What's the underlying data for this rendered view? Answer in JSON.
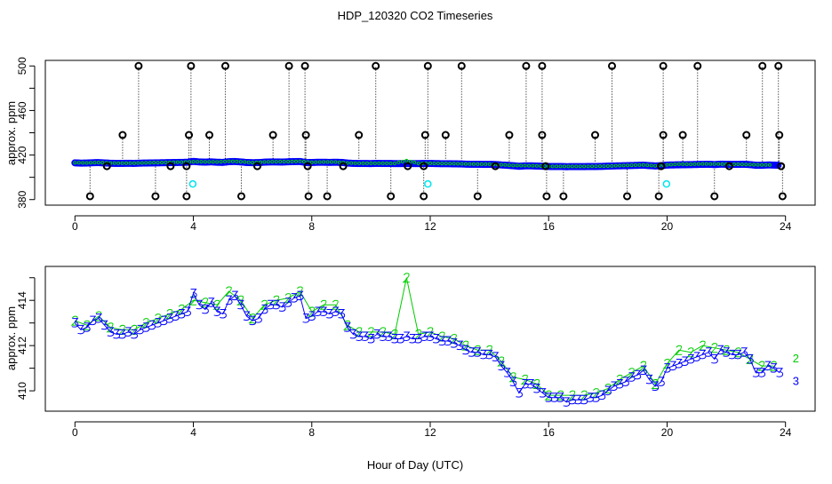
{
  "chart_data": [
    {
      "type": "scatter",
      "title": "HDP_120320  CO2 Timeseries",
      "xlabel": "",
      "ylabel": "approx. ppm",
      "xlim": [
        -1,
        25
      ],
      "ylim": [
        375,
        505
      ],
      "xticks": [
        0,
        4,
        8,
        12,
        16,
        20,
        24
      ],
      "yticks": [
        380,
        400,
        420,
        440,
        460,
        480,
        500
      ],
      "ytick_labels": [
        "380",
        "420",
        "460",
        "500"
      ],
      "main_series_source": "bottom panel series (blue and green)",
      "outliers": {
        "color": "#000000",
        "baseline": 412,
        "points": [
          [
            2.15,
            500
          ],
          [
            3.92,
            500
          ],
          [
            5.08,
            500
          ],
          [
            7.23,
            500
          ],
          [
            7.77,
            500
          ],
          [
            10.16,
            500
          ],
          [
            11.92,
            500
          ],
          [
            13.06,
            500
          ],
          [
            15.24,
            500
          ],
          [
            15.78,
            500
          ],
          [
            18.14,
            500
          ],
          [
            19.87,
            500
          ],
          [
            21.03,
            500
          ],
          [
            23.22,
            500
          ],
          [
            23.76,
            500
          ],
          [
            1.61,
            438
          ],
          [
            3.85,
            438
          ],
          [
            4.54,
            438
          ],
          [
            6.69,
            438
          ],
          [
            7.8,
            438
          ],
          [
            9.59,
            438
          ],
          [
            11.83,
            438
          ],
          [
            12.52,
            438
          ],
          [
            14.67,
            438
          ],
          [
            15.78,
            438
          ],
          [
            17.57,
            438
          ],
          [
            19.87,
            438
          ],
          [
            20.53,
            438
          ],
          [
            22.68,
            438
          ],
          [
            23.79,
            438
          ],
          [
            0.51,
            383
          ],
          [
            2.72,
            383
          ],
          [
            3.77,
            383
          ],
          [
            5.62,
            383
          ],
          [
            7.89,
            383
          ],
          [
            8.52,
            383
          ],
          [
            10.67,
            383
          ],
          [
            11.78,
            383
          ],
          [
            13.6,
            383
          ],
          [
            15.93,
            383
          ],
          [
            16.5,
            383
          ],
          [
            18.65,
            383
          ],
          [
            19.72,
            383
          ],
          [
            21.6,
            383
          ],
          [
            23.9,
            383
          ],
          [
            1.08,
            410
          ],
          [
            3.23,
            410
          ],
          [
            3.77,
            410
          ],
          [
            6.16,
            410
          ],
          [
            7.86,
            410
          ],
          [
            9.06,
            410
          ],
          [
            11.24,
            410
          ],
          [
            11.78,
            410
          ],
          [
            14.2,
            410
          ],
          [
            15.9,
            410
          ],
          [
            19.8,
            410
          ],
          [
            22.1,
            410
          ],
          [
            23.85,
            410
          ]
        ]
      },
      "cyan_points": {
        "color": "#00e5ee",
        "points": [
          [
            3.98,
            394
          ],
          [
            11.92,
            394
          ],
          [
            19.98,
            394
          ]
        ]
      }
    },
    {
      "type": "line",
      "title": "",
      "xlabel": "Hour of Day (UTC)",
      "ylabel": "approx. ppm",
      "xlim": [
        -1,
        25
      ],
      "ylim": [
        409.1,
        415.5
      ],
      "xticks": [
        0,
        4,
        8,
        12,
        16,
        20,
        24
      ],
      "yticks": [
        410,
        411,
        412,
        413,
        414,
        415
      ],
      "ytick_labels": [
        "410",
        "412",
        "414"
      ],
      "series": [
        {
          "name": "3",
          "color": "#0000ff",
          "x_start": 0,
          "x_step": 0.2,
          "values": [
            413.0,
            412.7,
            412.8,
            413.1,
            413.2,
            412.9,
            412.6,
            412.5,
            412.5,
            412.6,
            412.5,
            412.7,
            412.8,
            412.9,
            413.0,
            413.1,
            413.2,
            413.3,
            413.4,
            413.5,
            414.3,
            413.8,
            413.6,
            413.9,
            413.5,
            413.4,
            414.0,
            414.2,
            413.8,
            413.3,
            413.1,
            413.2,
            413.6,
            413.8,
            413.8,
            413.7,
            413.9,
            414.1,
            414.2,
            413.2,
            413.3,
            413.5,
            413.5,
            413.4,
            413.5,
            413.4,
            412.8,
            412.5,
            412.4,
            412.4,
            412.3,
            412.5,
            412.4,
            412.4,
            412.3,
            412.3,
            412.4,
            412.3,
            412.3,
            412.4,
            412.4,
            412.3,
            412.2,
            412.2,
            412.1,
            412.0,
            411.8,
            411.7,
            411.7,
            411.6,
            411.6,
            411.5,
            411.1,
            410.8,
            410.4,
            409.9,
            410.3,
            410.3,
            410.1,
            409.9,
            409.7,
            409.7,
            409.7,
            409.5,
            409.6,
            409.6,
            409.6,
            409.7,
            409.7,
            409.8,
            410.0,
            410.2,
            410.3,
            410.4,
            410.6,
            410.7,
            410.9,
            410.5,
            410.2,
            410.4,
            411.0,
            411.1,
            411.2,
            411.3,
            411.4,
            411.5,
            411.6,
            411.7,
            411.4,
            411.8,
            411.7,
            411.6,
            411.6,
            411.7,
            411.4,
            410.8,
            410.8,
            411.1,
            411.0,
            410.8
          ]
        },
        {
          "name": "2",
          "color": "#00cc00",
          "x_start": 0,
          "x_step": 0.4,
          "values": [
            413.1,
            412.9,
            413.3,
            412.8,
            412.7,
            412.7,
            413.0,
            413.2,
            413.4,
            413.6,
            414.0,
            413.9,
            413.8,
            414.4,
            414.0,
            413.2,
            413.8,
            414.0,
            414.1,
            414.4,
            413.5,
            413.8,
            413.8,
            412.9,
            412.6,
            412.6,
            412.6,
            412.5,
            415.0,
            412.5,
            412.6,
            412.4,
            412.3,
            412.0,
            411.8,
            411.8,
            411.3,
            410.6,
            410.5,
            410.3,
            409.8,
            409.8,
            409.8,
            409.8,
            409.9,
            410.1,
            410.5,
            410.8,
            411.1,
            410.3,
            411.2,
            411.8,
            411.7,
            412.0,
            411.9,
            411.8,
            411.7,
            411.4,
            411.1,
            411.1
          ]
        }
      ]
    }
  ]
}
